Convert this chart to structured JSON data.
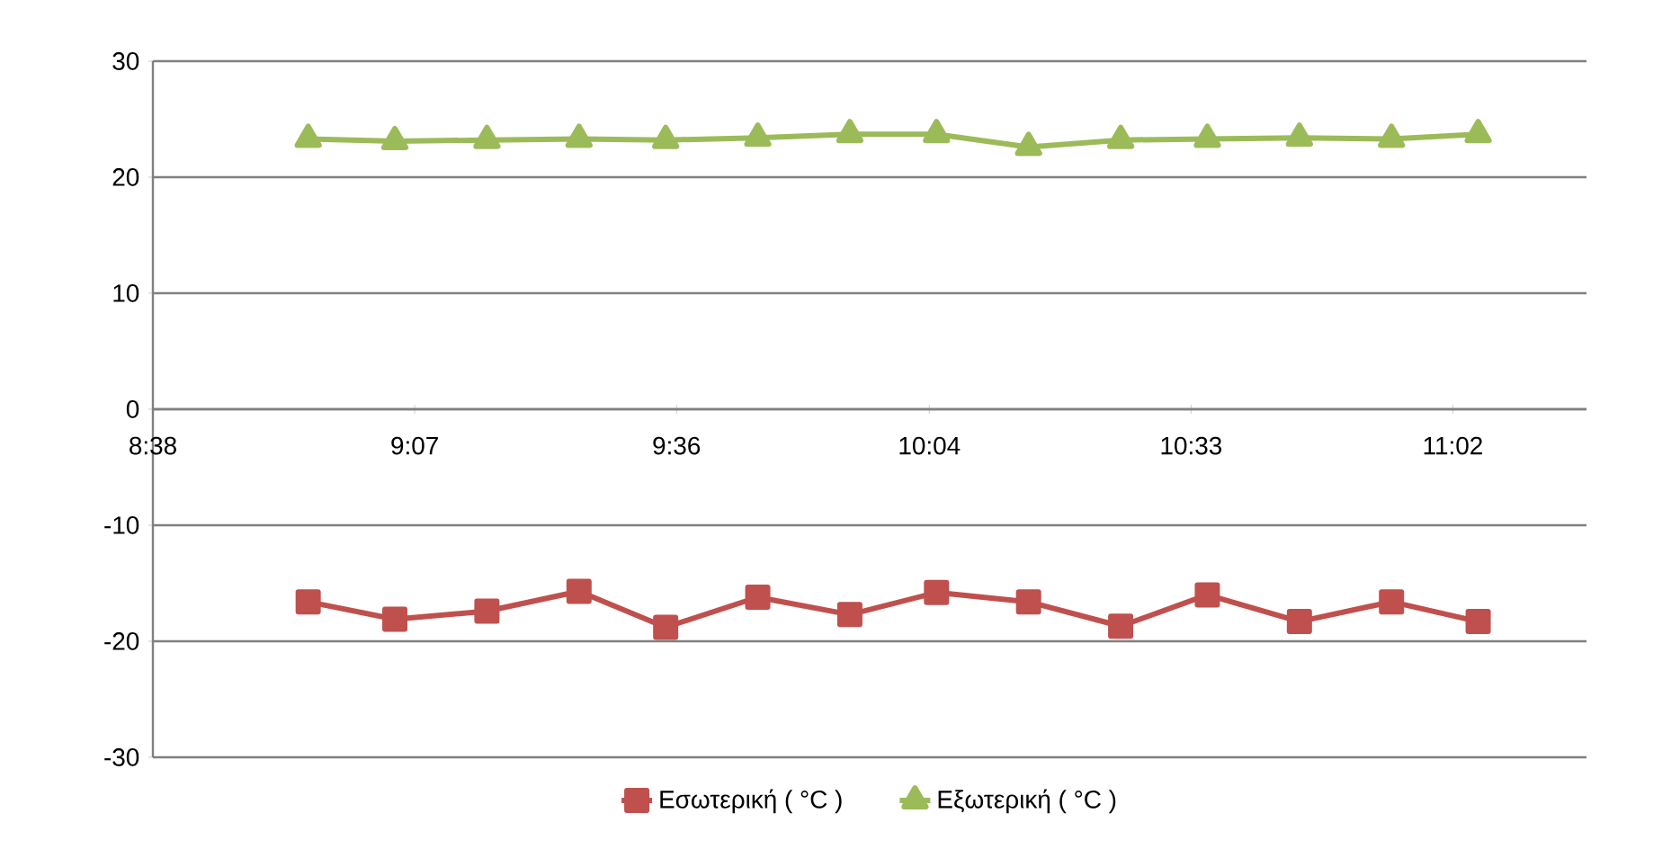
{
  "chart_data": {
    "type": "line",
    "x": [
      8.92,
      9.08,
      9.25,
      9.42,
      9.58,
      9.75,
      9.92,
      10.08,
      10.25,
      10.42,
      10.58,
      10.75,
      10.92,
      11.08
    ],
    "series": [
      {
        "name": "Εσωτερική ( °C )",
        "color": "#c0504d",
        "marker": "square",
        "values": [
          -16.6,
          -18.1,
          -17.4,
          -15.7,
          -18.8,
          -16.2,
          -17.7,
          -15.8,
          -16.6,
          -18.7,
          -16.0,
          -18.3,
          -16.6,
          -18.3
        ]
      },
      {
        "name": "Εξωτερική  ( °C )",
        "color": "#9bbb59",
        "marker": "triangle",
        "values": [
          23.3,
          23.1,
          23.2,
          23.3,
          23.2,
          23.4,
          23.7,
          23.7,
          22.6,
          23.2,
          23.3,
          23.4,
          23.3,
          23.7
        ]
      }
    ],
    "xlim": [
      8.6333,
      11.28
    ],
    "xticks": [
      {
        "value": 8.6333,
        "label": "8:38"
      },
      {
        "value": 9.1167,
        "label": "9:07"
      },
      {
        "value": 9.6,
        "label": "9:36"
      },
      {
        "value": 10.0667,
        "label": "10:04"
      },
      {
        "value": 10.55,
        "label": "10:33"
      },
      {
        "value": 11.0333,
        "label": "11:02"
      }
    ],
    "ylim": [
      -30,
      30
    ],
    "yticks": [
      -30,
      -20,
      -10,
      0,
      10,
      20,
      30
    ],
    "grid": "y",
    "legend": "bottom",
    "line_style": "solid"
  }
}
